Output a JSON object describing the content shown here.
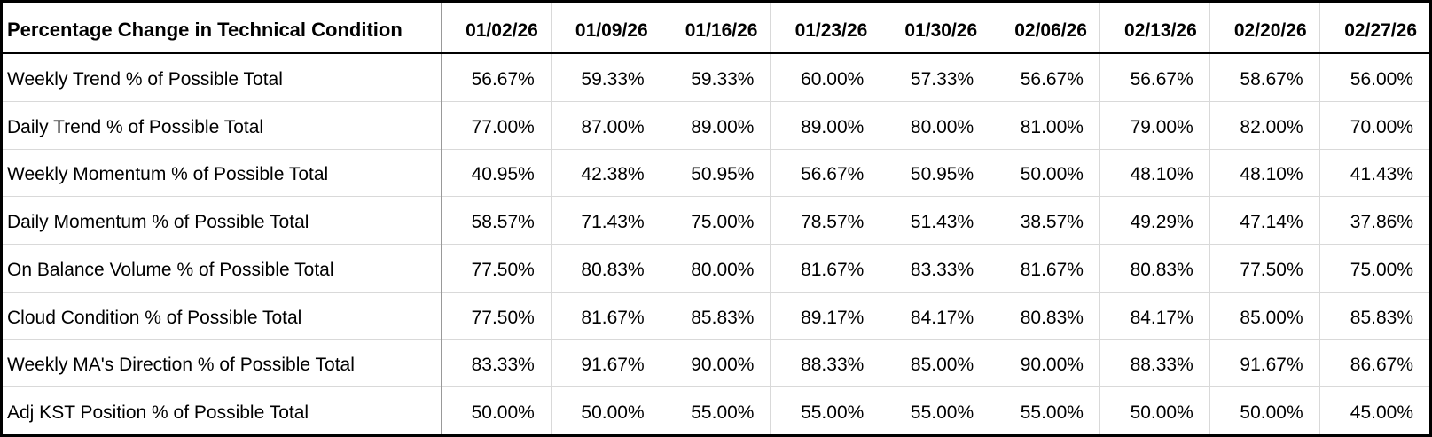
{
  "table": {
    "title": "Percentage Change in Technical Condition",
    "date_headers": [
      "01/02/26",
      "01/09/26",
      "01/16/26",
      "01/23/26",
      "01/30/26",
      "02/06/26",
      "02/13/26",
      "02/20/26",
      "02/27/26"
    ],
    "rows": [
      {
        "label": "Weekly Trend % of Possible Total",
        "values": [
          "56.67%",
          "59.33%",
          "59.33%",
          "60.00%",
          "57.33%",
          "56.67%",
          "56.67%",
          "58.67%",
          "56.00%"
        ]
      },
      {
        "label": "Daily Trend % of Possible Total",
        "values": [
          "77.00%",
          "87.00%",
          "89.00%",
          "89.00%",
          "80.00%",
          "81.00%",
          "79.00%",
          "82.00%",
          "70.00%"
        ]
      },
      {
        "label": "Weekly Momentum % of Possible Total",
        "values": [
          "40.95%",
          "42.38%",
          "50.95%",
          "56.67%",
          "50.95%",
          "50.00%",
          "48.10%",
          "48.10%",
          "41.43%"
        ]
      },
      {
        "label": "Daily Momentum % of Possible Total",
        "values": [
          "58.57%",
          "71.43%",
          "75.00%",
          "78.57%",
          "51.43%",
          "38.57%",
          "49.29%",
          "47.14%",
          "37.86%"
        ]
      },
      {
        "label": "On Balance Volume % of Possible Total",
        "values": [
          "77.50%",
          "80.83%",
          "80.00%",
          "81.67%",
          "83.33%",
          "81.67%",
          "80.83%",
          "77.50%",
          "75.00%"
        ]
      },
      {
        "label": "Cloud Condition % of Possible Total",
        "values": [
          "77.50%",
          "81.67%",
          "85.83%",
          "89.17%",
          "84.17%",
          "80.83%",
          "84.17%",
          "85.00%",
          "85.83%"
        ]
      },
      {
        "label": "Weekly MA's Direction % of Possible Total",
        "values": [
          "83.33%",
          "91.67%",
          "90.00%",
          "88.33%",
          "85.00%",
          "90.00%",
          "88.33%",
          "91.67%",
          "86.67%"
        ]
      },
      {
        "label": "Adj KST Position % of Possible Total",
        "values": [
          "50.00%",
          "50.00%",
          "55.00%",
          "55.00%",
          "55.00%",
          "55.00%",
          "50.00%",
          "50.00%",
          "45.00%"
        ]
      }
    ]
  },
  "chart_data": {
    "type": "table",
    "title": "Percentage Change in Technical Condition",
    "categories": [
      "01/02/26",
      "01/09/26",
      "01/16/26",
      "01/23/26",
      "01/30/26",
      "02/06/26",
      "02/13/26",
      "02/20/26",
      "02/27/26"
    ],
    "unit": "percent",
    "series": [
      {
        "name": "Weekly Trend % of Possible Total",
        "values": [
          56.67,
          59.33,
          59.33,
          60.0,
          57.33,
          56.67,
          56.67,
          58.67,
          56.0
        ]
      },
      {
        "name": "Daily Trend % of Possible Total",
        "values": [
          77.0,
          87.0,
          89.0,
          89.0,
          80.0,
          81.0,
          79.0,
          82.0,
          70.0
        ]
      },
      {
        "name": "Weekly Momentum % of Possible Total",
        "values": [
          40.95,
          42.38,
          50.95,
          56.67,
          50.95,
          50.0,
          48.1,
          48.1,
          41.43
        ]
      },
      {
        "name": "Daily Momentum % of Possible Total",
        "values": [
          58.57,
          71.43,
          75.0,
          78.57,
          51.43,
          38.57,
          49.29,
          47.14,
          37.86
        ]
      },
      {
        "name": "On Balance Volume % of Possible Total",
        "values": [
          77.5,
          80.83,
          80.0,
          81.67,
          83.33,
          81.67,
          80.83,
          77.5,
          75.0
        ]
      },
      {
        "name": "Cloud Condition % of Possible Total",
        "values": [
          77.5,
          81.67,
          85.83,
          89.17,
          84.17,
          80.83,
          84.17,
          85.0,
          85.83
        ]
      },
      {
        "name": "Weekly MA's Direction % of Possible Total",
        "values": [
          83.33,
          91.67,
          90.0,
          88.33,
          85.0,
          90.0,
          88.33,
          91.67,
          86.67
        ]
      },
      {
        "name": "Adj KST Position % of Possible Total",
        "values": [
          50.0,
          50.0,
          55.0,
          55.0,
          55.0,
          55.0,
          50.0,
          50.0,
          45.0
        ]
      }
    ]
  },
  "colors": {
    "background": "#ffffff",
    "text": "#000000",
    "outer_border": "#000000",
    "header_underline": "#000000",
    "row_divider": "#d9d9d9",
    "column_divider": "#d9d9d9",
    "label_column_divider": "#999999"
  }
}
